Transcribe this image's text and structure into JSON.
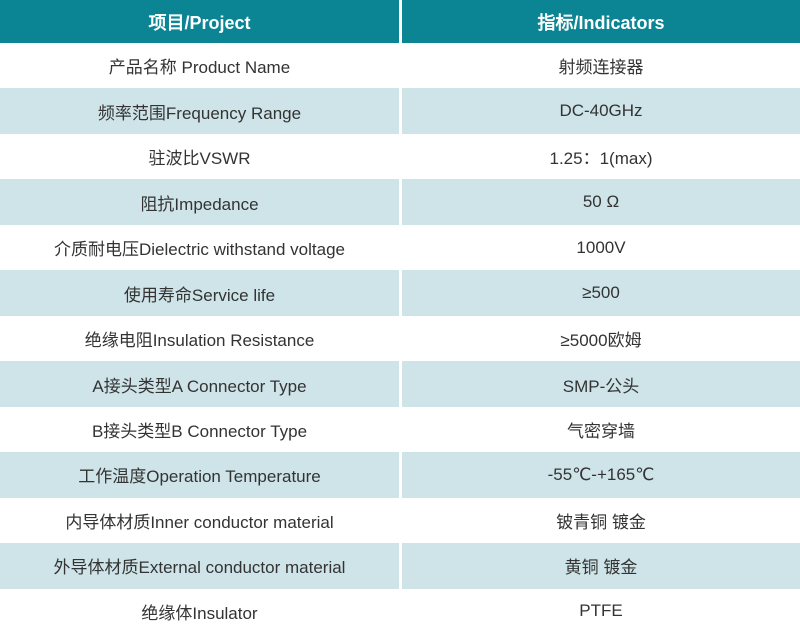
{
  "table": {
    "headers": {
      "project": "项目/Project",
      "indicators": "指标/Indicators"
    },
    "rows": [
      {
        "project": "产品名称 Product Name",
        "indicator": "射频连接器"
      },
      {
        "project": "频率范围Frequency Range",
        "indicator": "DC-40GHz"
      },
      {
        "project": "驻波比VSWR",
        "indicator": "1.25：1(max)"
      },
      {
        "project": "阻抗Impedance",
        "indicator": "50 Ω"
      },
      {
        "project": "介质耐电压Dielectric withstand voltage",
        "indicator": "1000V"
      },
      {
        "project": "使用寿命Service life",
        "indicator": "≥500"
      },
      {
        "project": "绝缘电阻Insulation Resistance",
        "indicator": "≥5000欧姆"
      },
      {
        "project": "A接头类型A Connector Type",
        "indicator": "SMP-公头"
      },
      {
        "project": "B接头类型B Connector Type",
        "indicator": "气密穿墙"
      },
      {
        "project": "工作温度Operation Temperature",
        "indicator": "-55℃-+165℃"
      },
      {
        "project": "内导体材质Inner conductor material",
        "indicator": "铍青铜 镀金"
      },
      {
        "project": "外导体材质External conductor material",
        "indicator": "黄铜 镀金"
      },
      {
        "project": "绝缘体Insulator",
        "indicator": "PTFE"
      }
    ],
    "colors": {
      "header_bg": "#0b8494",
      "stripe_bg": "#cee4e8",
      "header_text": "#ffffff",
      "body_text": "#333333"
    }
  }
}
